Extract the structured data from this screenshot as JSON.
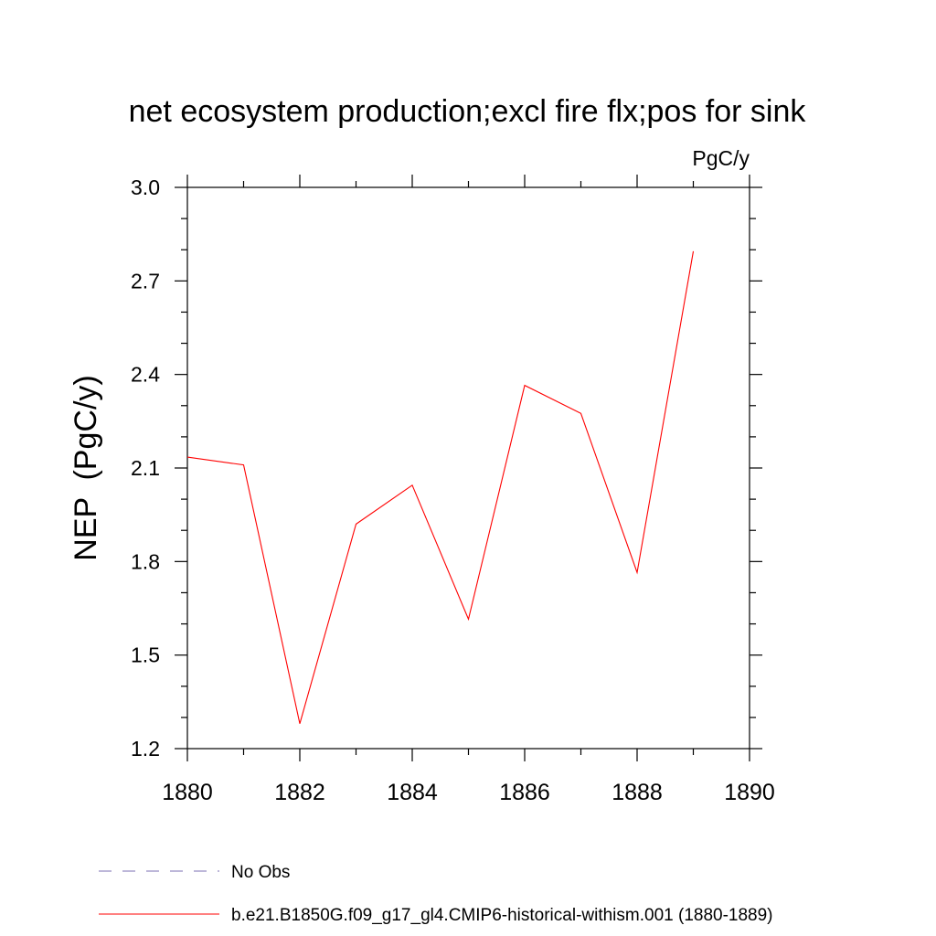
{
  "chart_data": {
    "type": "line",
    "title": "net ecosystem production;excl fire flx;pos for sink",
    "units_label": "PgC/y",
    "xlabel": "",
    "ylabel": "NEP  (PgC/y)",
    "xlim": [
      1880,
      1890
    ],
    "ylim": [
      1.2,
      3.0
    ],
    "x_ticks": [
      "1880",
      "1882",
      "1884",
      "1886",
      "1888",
      "1890"
    ],
    "y_ticks": [
      "1.2",
      "1.5",
      "1.8",
      "2.1",
      "2.4",
      "2.7",
      "3.0"
    ],
    "grid": false,
    "legend_position": "bottom-left",
    "series": [
      {
        "name": "No Obs",
        "color": "#7b6fb3",
        "style": "dashed",
        "x": [],
        "y": []
      },
      {
        "name": "b.e21.B1850G.f09_g17_gl4.CMIP6-historical-withism.001 (1880-1889)",
        "color": "#ff0000",
        "style": "solid",
        "x": [
          1880,
          1881,
          1882,
          1883,
          1884,
          1885,
          1886,
          1887,
          1888,
          1889
        ],
        "y": [
          2.135,
          2.11,
          1.28,
          1.92,
          2.045,
          1.615,
          2.365,
          2.275,
          1.765,
          2.795
        ]
      }
    ]
  }
}
